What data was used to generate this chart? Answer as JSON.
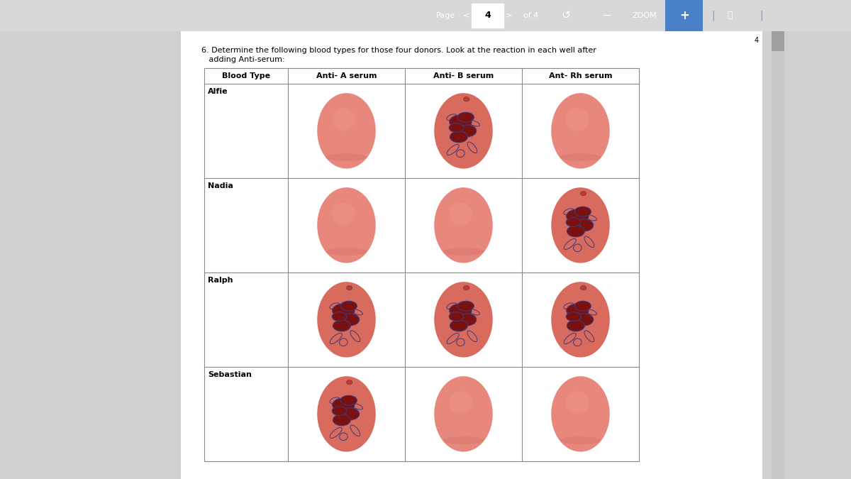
{
  "title_line1": "6. Determine the following blood types for those four donors. Look at the reaction in each well after",
  "title_line2": "   adding Anti-serum:",
  "header_bg": "#4f5c6e",
  "page_bg": "#d8d8d8",
  "content_bg": "#ffffff",
  "page_num": "4",
  "col_headers": [
    "Blood Type",
    "Anti- A serum",
    "Anti- B serum",
    "Ant- Rh serum"
  ],
  "row_labels": [
    "Alfie",
    "Nadia",
    "Ralph",
    "Sebastian"
  ],
  "ellipse_plain_color": "#e8877c",
  "ellipse_agglut_color": "#d96a5e",
  "agglutinated": [
    [
      false,
      true,
      false
    ],
    [
      false,
      false,
      true
    ],
    [
      true,
      true,
      true
    ],
    [
      true,
      false,
      false
    ]
  ]
}
